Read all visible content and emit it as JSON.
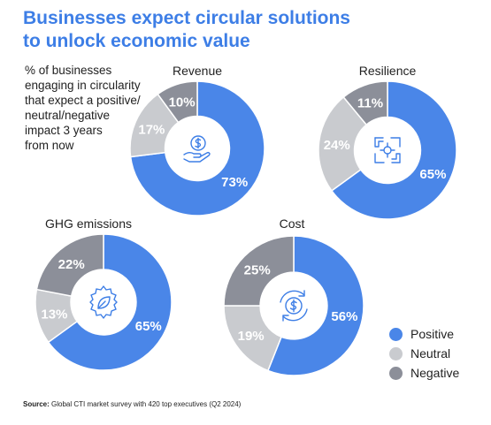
{
  "header": {
    "title_line1": "Businesses expect circular solutions",
    "title_line2": "to unlock economic value"
  },
  "description": {
    "line1": "% of businesses",
    "line2": "engaging in circularity",
    "line3": "that expect a positive/",
    "line4": "neutral/negative",
    "line5": "impact 3 years",
    "line6": "from now"
  },
  "colors": {
    "positive": "#4a86e8",
    "neutral": "#c9cbcf",
    "negative": "#8c8f99",
    "icon": "#3d7ee6"
  },
  "legend": {
    "positive": "Positive",
    "neutral": "Neutral",
    "negative": "Negative"
  },
  "chart_data": [
    {
      "type": "pie",
      "title": "Revenue",
      "icon": "hand-coin-icon",
      "slices": [
        {
          "name": "Positive",
          "value": 73,
          "label": "73%"
        },
        {
          "name": "Neutral",
          "value": 17,
          "label": "17%"
        },
        {
          "name": "Negative",
          "value": 10,
          "label": "10%"
        }
      ]
    },
    {
      "type": "pie",
      "title": "Resilience",
      "icon": "puzzle-hands-icon",
      "slices": [
        {
          "name": "Positive",
          "value": 65,
          "label": "65%"
        },
        {
          "name": "Neutral",
          "value": 24,
          "label": "24%"
        },
        {
          "name": "Negative",
          "value": 11,
          "label": "11%"
        }
      ]
    },
    {
      "type": "pie",
      "title": "GHG emissions",
      "icon": "gear-leaf-icon",
      "slices": [
        {
          "name": "Positive",
          "value": 65,
          "label": "65%"
        },
        {
          "name": "Neutral",
          "value": 13,
          "label": "13%"
        },
        {
          "name": "Negative",
          "value": 22,
          "label": "22%"
        }
      ]
    },
    {
      "type": "pie",
      "title": "Cost",
      "icon": "dollar-cycle-icon",
      "slices": [
        {
          "name": "Positive",
          "value": 56,
          "label": "56%"
        },
        {
          "name": "Neutral",
          "value": 19,
          "label": "19%"
        },
        {
          "name": "Negative",
          "value": 25,
          "label": "25%"
        }
      ]
    }
  ],
  "source": {
    "prefix": "Source:",
    "text": " Global CTI market survey with 420 top executives (Q2 2024)"
  }
}
